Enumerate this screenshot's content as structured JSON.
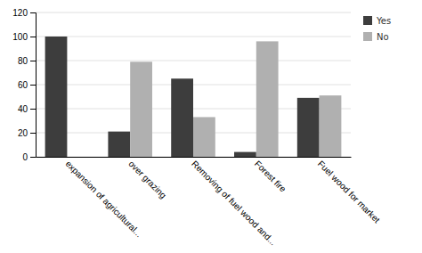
{
  "chart_data": {
    "type": "bar",
    "categories": [
      "expansion of agricultural...",
      "over grazing",
      "Removing of fuel wood and...",
      "Forest fire",
      "Fuel wood for market"
    ],
    "series": [
      {
        "name": "Yes",
        "color": "#3d3d3d",
        "values": [
          100,
          21,
          65,
          4,
          49
        ]
      },
      {
        "name": "No",
        "color": "#b0b0b0",
        "values": [
          0,
          79,
          33,
          96,
          51
        ]
      }
    ],
    "ylim": [
      0,
      120
    ],
    "yticks": [
      0,
      20,
      40,
      60,
      80,
      100,
      120
    ],
    "grid": true,
    "legend": "right"
  }
}
